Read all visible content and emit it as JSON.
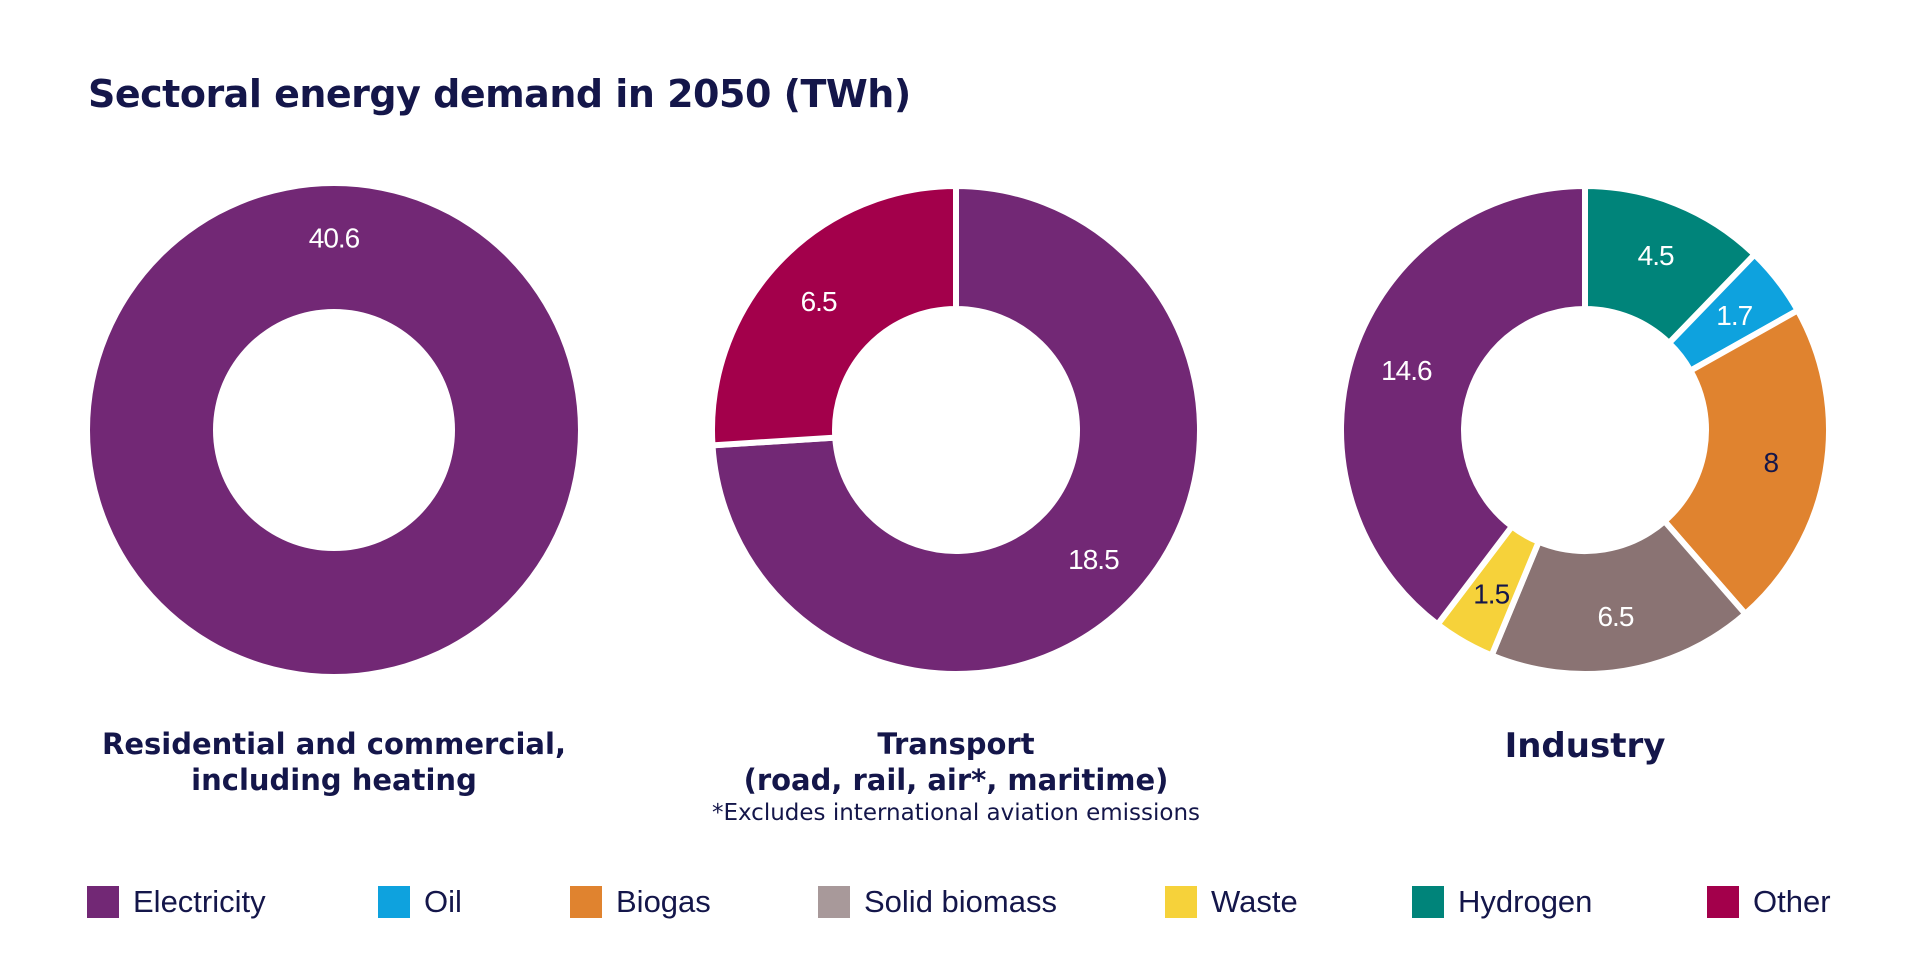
{
  "chart_data": [
    {
      "type": "pie",
      "title": "Sectoral energy demand in 2050 (TWh)",
      "caption": [
        "Residential and commercial,",
        "including heating"
      ],
      "slices": [
        {
          "name": "Electricity",
          "value": 40.6,
          "label": "40.6"
        }
      ]
    },
    {
      "type": "pie",
      "caption": [
        "Transport",
        "(road, rail, air*, maritime)"
      ],
      "note": "*Excludes international aviation emissions",
      "slices": [
        {
          "name": "Electricity",
          "value": 18.5,
          "label": "18.5"
        },
        {
          "name": "Other",
          "value": 6.5,
          "label": "6.5"
        }
      ]
    },
    {
      "type": "pie",
      "caption": [
        "Industry"
      ],
      "slices": [
        {
          "name": "Hydrogen",
          "value": 4.5,
          "label": "4.5"
        },
        {
          "name": "Oil",
          "value": 1.7,
          "label": "1.7"
        },
        {
          "name": "Biogas",
          "value": 8,
          "label": "8"
        },
        {
          "name": "Solid biomass",
          "value": 6.5,
          "label": "6.5"
        },
        {
          "name": "Waste",
          "value": 1.5,
          "label": "1.5"
        },
        {
          "name": "Electricity",
          "value": 14.6,
          "label": "14.6"
        }
      ]
    }
  ],
  "title": "Sectoral energy demand in 2050 (TWh)",
  "legend": [
    {
      "name": "Electricity",
      "color": "#722875"
    },
    {
      "name": "Oil",
      "color": "#0ea2de"
    },
    {
      "name": "Biogas",
      "color": "#e0832f"
    },
    {
      "name": "Solid biomass",
      "color": "#a8999a"
    },
    {
      "name": "Waste",
      "color": "#f6d23a"
    },
    {
      "name": "Hydrogen",
      "color": "#00847a"
    },
    {
      "name": "Other",
      "color": "#a3004b"
    }
  ],
  "slice_colors": {
    "Electricity": "#722875",
    "Oil": "#0ea2de",
    "Biogas": "#e0832f",
    "Solid biomass": "#8a7373",
    "Waste": "#f6d23a",
    "Hydrogen": "#00847a",
    "Other": "#a3004b"
  },
  "dark_label_series": [
    "Biogas",
    "Waste"
  ]
}
